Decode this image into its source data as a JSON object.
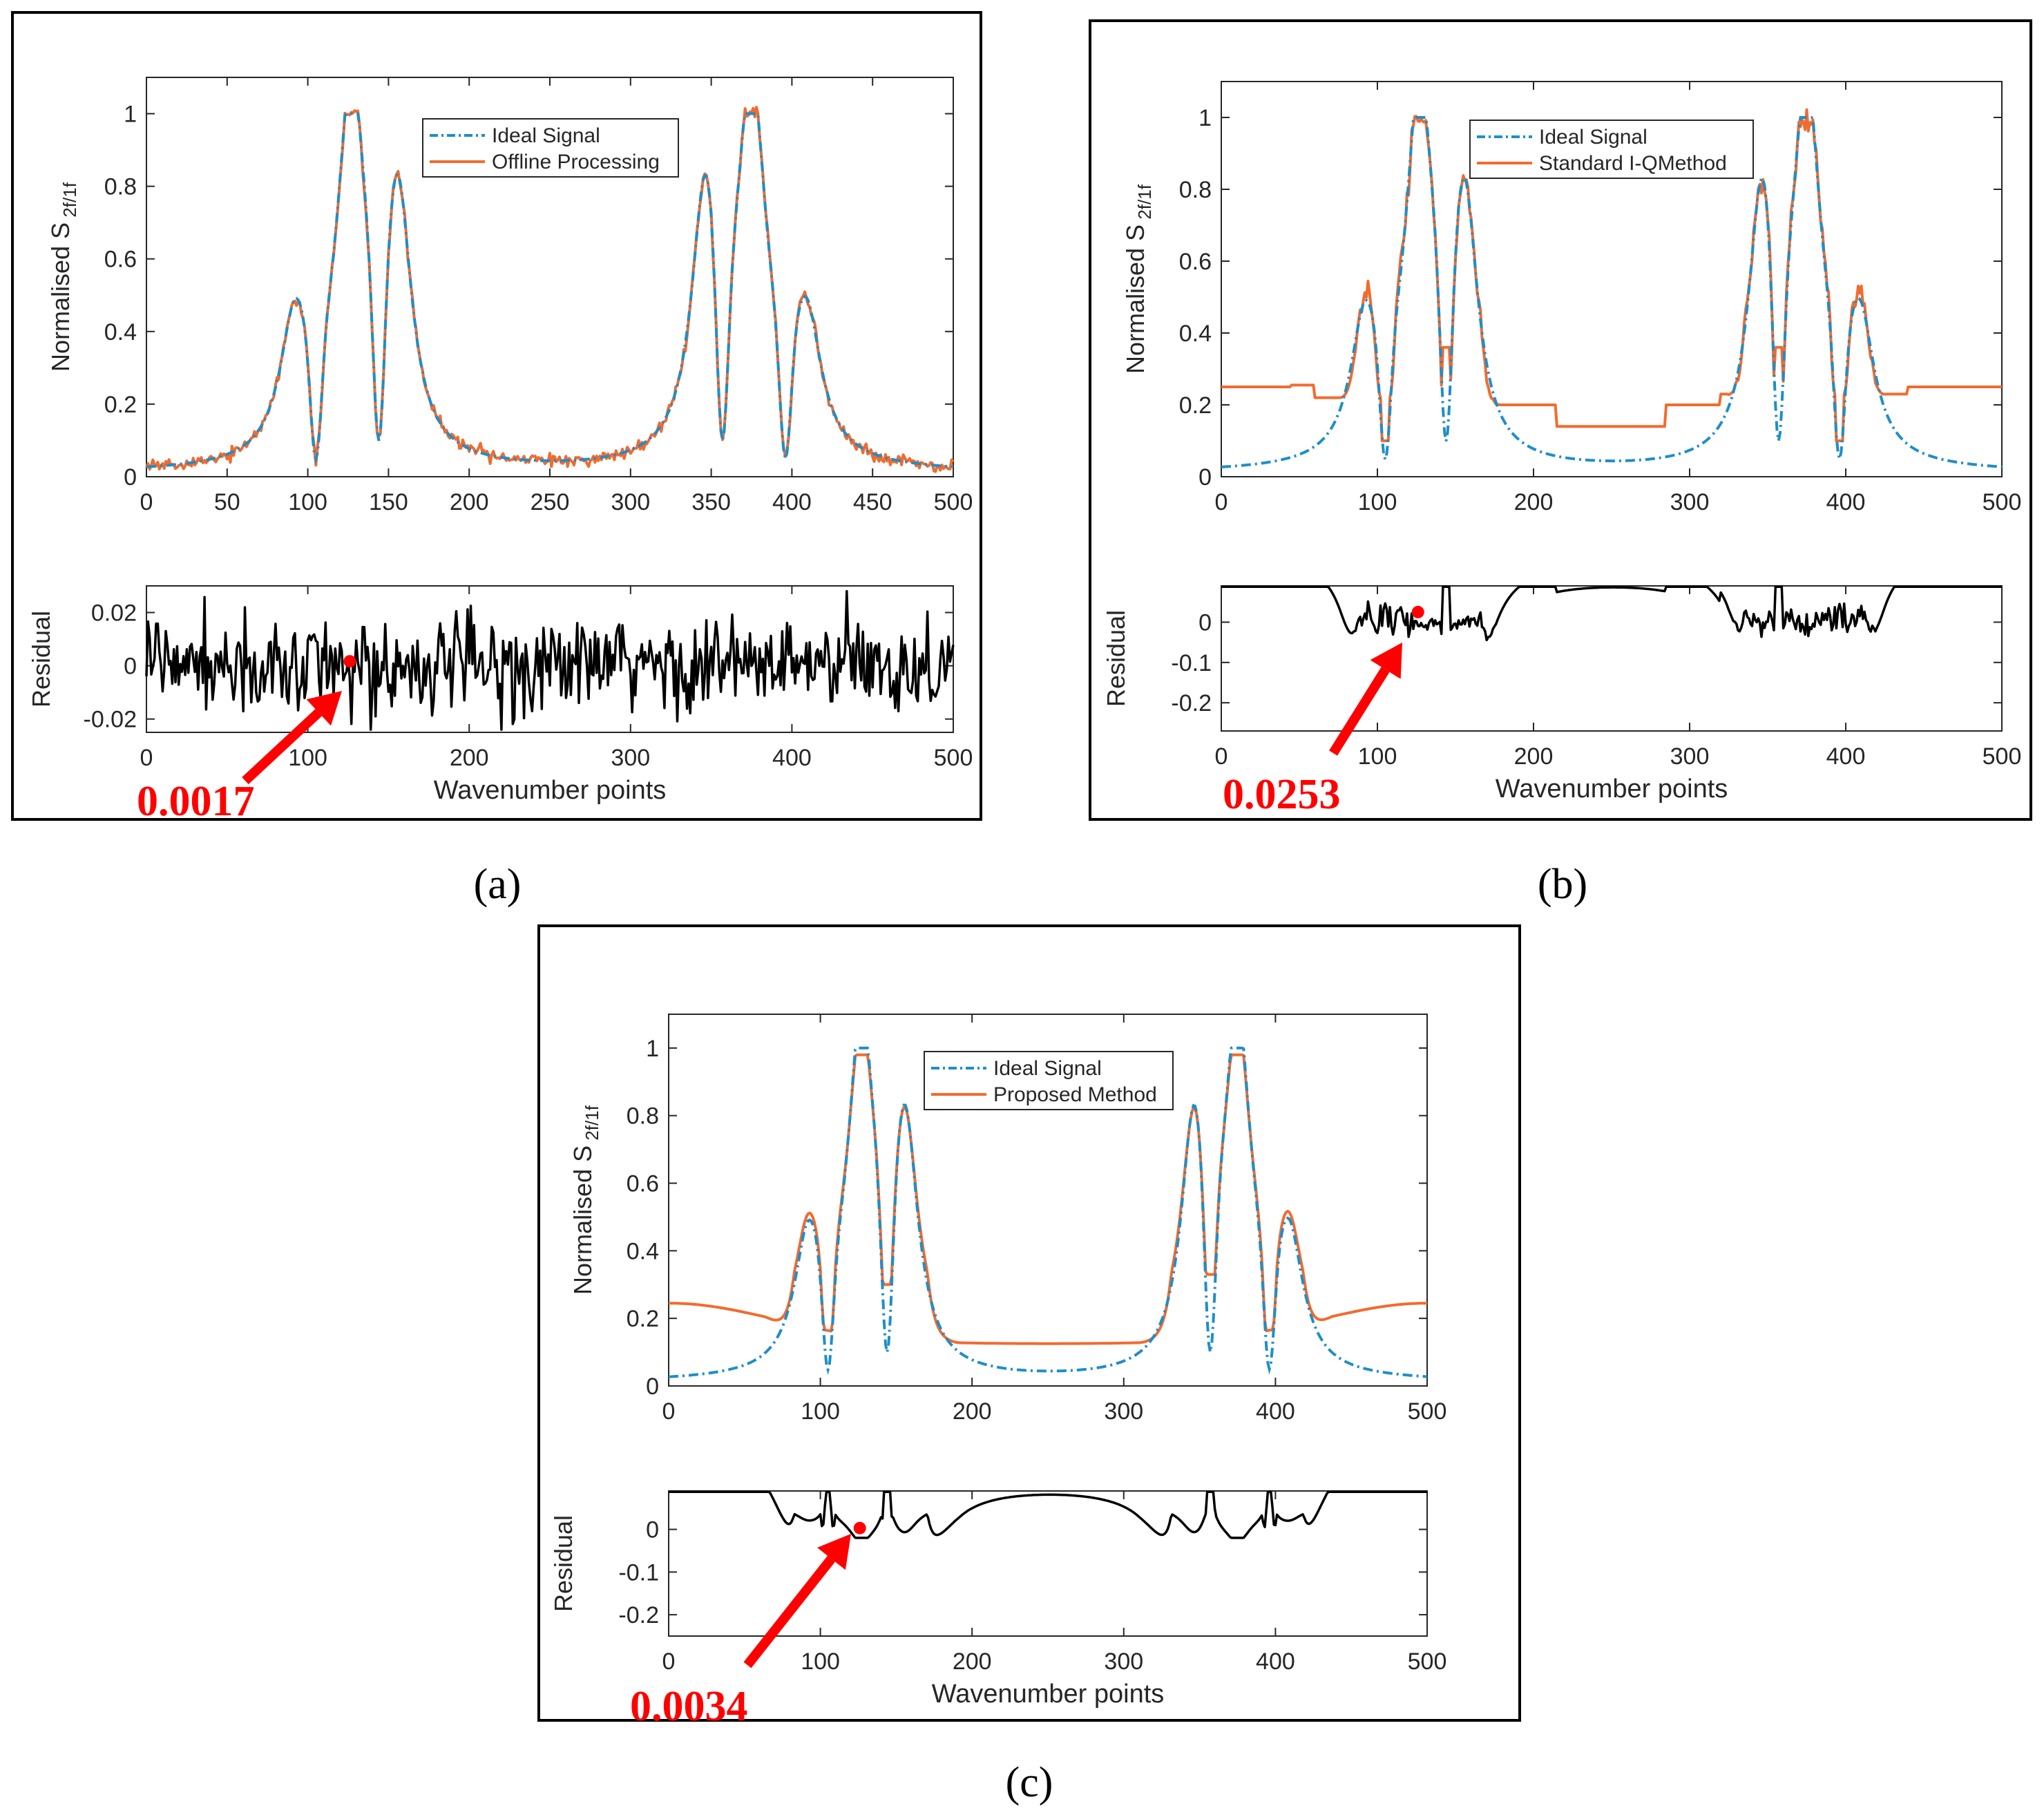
{
  "colors": {
    "ideal": "#1f8ec8",
    "measured": "#f26b2f",
    "residual": "#000000",
    "annotation": "#ff0000"
  },
  "chart_data": [
    {
      "panel_id": "a",
      "caption": "(a)",
      "type": "line",
      "ylabel": "Normalised S",
      "ylabel_sub": "2f/1f",
      "xlabel": "Wavenumber points",
      "xlim": [
        0,
        500
      ],
      "ylim": [
        0,
        1.1
      ],
      "main_xticks": [
        0,
        50,
        100,
        150,
        200,
        250,
        300,
        350,
        400,
        450,
        500
      ],
      "yticks": [
        0,
        0.2,
        0.4,
        0.6,
        0.8,
        1
      ],
      "legend": [
        "Ideal Signal",
        "Offline Processing"
      ],
      "series": [
        {
          "name": "Ideal Signal",
          "style": "dash-dot",
          "baseline": 0.0,
          "values": "ideal_profile(x)"
        },
        {
          "name": "Offline Processing",
          "style": "solid",
          "values": "ideal_profile(x) + noise (σ≈0.01)"
        }
      ],
      "residual": {
        "ylabel": "Residual",
        "ylim": [
          -0.025,
          0.03
        ],
        "yticks": [
          -0.02,
          0,
          0.02
        ],
        "xticks": [
          0,
          100,
          200,
          300,
          400,
          500
        ],
        "description": "random noise around 0, amplitude about ±0.02",
        "marker_x": 126,
        "marker_y": 0.0017
      },
      "annotation": "0.0017"
    },
    {
      "panel_id": "b",
      "caption": "(b)",
      "type": "line",
      "ylabel": "Normalised S",
      "ylabel_sub": "2f/1f",
      "xlabel": "Wavenumber points",
      "xlim": [
        0,
        500
      ],
      "ylim": [
        0,
        1.1
      ],
      "main_xticks": [
        0,
        100,
        200,
        300,
        400,
        500
      ],
      "yticks": [
        0,
        0.2,
        0.4,
        0.6,
        0.8,
        1
      ],
      "legend": [
        "Ideal Signal",
        "Standard I-QMethod"
      ],
      "series": [
        {
          "name": "Ideal Signal",
          "style": "dash-dot"
        },
        {
          "name": "Standard I-QMethod",
          "style": "solid",
          "plateaus": [
            [
              0,
              45,
              0.25
            ],
            [
              45,
              60,
              0.26
            ],
            [
              165,
              190,
              0.2
            ],
            [
              190,
              215,
              0.2
            ],
            [
              215,
              285,
              0.14
            ],
            [
              285,
              320,
              0.2
            ],
            [
              430,
              460,
              0.24
            ],
            [
              460,
              500,
              0.25
            ]
          ]
        }
      ],
      "residual": {
        "ylabel": "Residual",
        "ylim": [
          -0.27,
          0.09
        ],
        "yticks": [
          -0.2,
          -0.1,
          0
        ],
        "xticks": [
          0,
          100,
          200,
          300,
          400,
          500
        ],
        "marker_x": 126,
        "marker_y": 0.025
      },
      "annotation": "0.0253"
    },
    {
      "panel_id": "c",
      "caption": "(c)",
      "type": "line",
      "ylabel": "Normalised S",
      "ylabel_sub": "2f/1f",
      "xlabel": "Wavenumber points",
      "xlim": [
        0,
        500
      ],
      "ylim": [
        0,
        1.1
      ],
      "main_xticks": [
        0,
        100,
        200,
        300,
        400,
        500
      ],
      "yticks": [
        0,
        0.2,
        0.4,
        0.6,
        0.8,
        1
      ],
      "legend": [
        "Ideal Signal",
        "Proposed Method"
      ],
      "series": [
        {
          "name": "Ideal Signal",
          "style": "dash-dot"
        },
        {
          "name": "Proposed Method",
          "style": "solid",
          "baseline_edges": 0.245,
          "baseline_center": 0.125
        }
      ],
      "residual": {
        "ylabel": "Residual",
        "ylim": [
          -0.25,
          0.09
        ],
        "yticks": [
          -0.2,
          -0.1,
          0
        ],
        "xticks": [
          0,
          100,
          200,
          300,
          400,
          500
        ],
        "marker_x": 126,
        "marker_y": 0.003
      },
      "annotation": "0.0034"
    }
  ]
}
